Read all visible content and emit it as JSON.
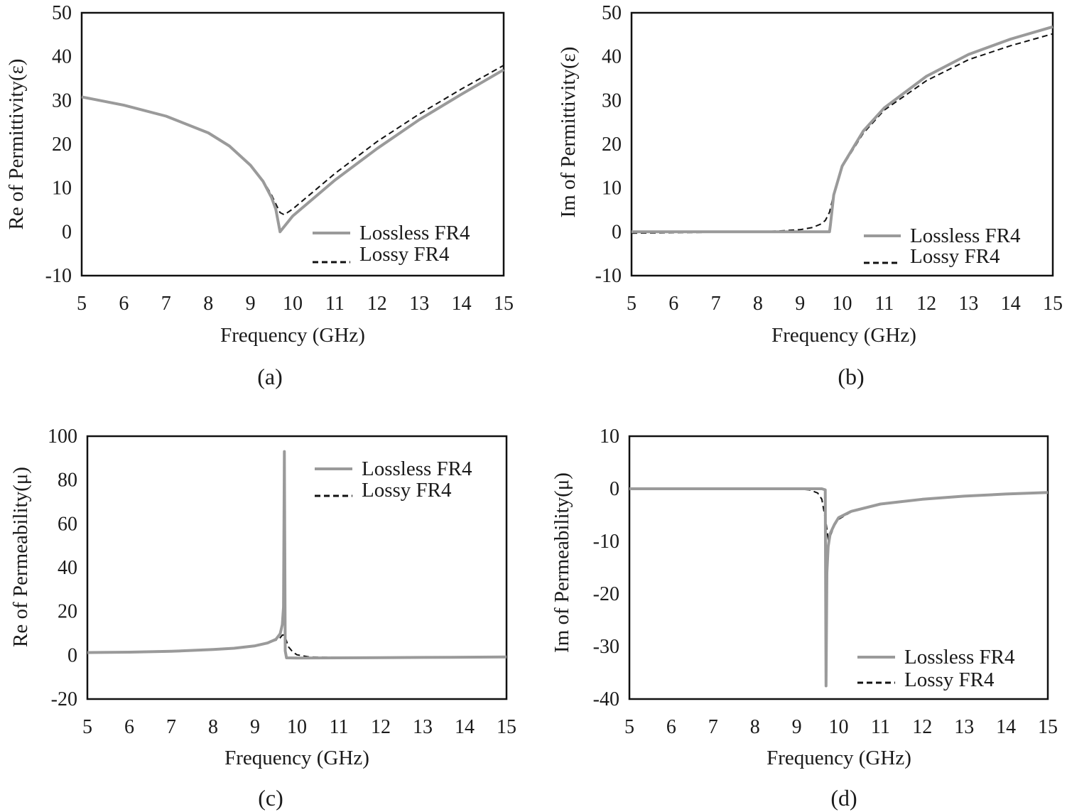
{
  "chart_data": [
    {
      "id": "a",
      "type": "line",
      "caption": "(a)",
      "xlabel": "Frequency (GHz)",
      "ylabel": "Re of Permittivity(ε)",
      "xlim": [
        5,
        15
      ],
      "ylim": [
        -10,
        50
      ],
      "xticks": [
        5,
        6,
        7,
        8,
        9,
        10,
        11,
        12,
        13,
        14,
        15
      ],
      "yticks": [
        -10,
        0,
        10,
        20,
        30,
        40,
        50
      ],
      "legend_position": "bottom-right",
      "series": [
        {
          "name": "Lossless FR4",
          "style": "solid-gray",
          "x": [
            5,
            6,
            7,
            8,
            8.5,
            9,
            9.3,
            9.5,
            9.6,
            9.7,
            10,
            11,
            12,
            13,
            14,
            15
          ],
          "y": [
            30.8,
            28.9,
            26.4,
            22.6,
            19.6,
            15.2,
            11.5,
            7.8,
            5.2,
            0,
            3.6,
            11.8,
            19.0,
            25.6,
            31.4,
            37.0
          ]
        },
        {
          "name": "Lossy FR4",
          "style": "dashed-black",
          "x": [
            5,
            6,
            7,
            8,
            8.5,
            9,
            9.3,
            9.5,
            9.6,
            9.7,
            9.8,
            10,
            11,
            12,
            13,
            14,
            15
          ],
          "y": [
            30.8,
            28.9,
            26.4,
            22.6,
            19.6,
            15.2,
            11.7,
            8.4,
            6.4,
            4.4,
            3.9,
            5.2,
            13.3,
            20.6,
            26.9,
            32.6,
            38.0
          ]
        }
      ]
    },
    {
      "id": "b",
      "type": "line",
      "caption": "(b)",
      "xlabel": "Frequency (GHz)",
      "ylabel": "Im of Permittivity(ε)",
      "xlim": [
        5,
        15
      ],
      "ylim": [
        -10,
        50
      ],
      "xticks": [
        5,
        6,
        7,
        8,
        9,
        10,
        11,
        12,
        13,
        14,
        15
      ],
      "yticks": [
        -10,
        0,
        10,
        20,
        30,
        40,
        50
      ],
      "legend_position": "bottom-right",
      "series": [
        {
          "name": "Lossless FR4",
          "style": "solid-gray",
          "x": [
            5,
            9.7,
            9.72,
            9.8,
            10,
            10.5,
            11,
            12,
            13,
            14,
            15
          ],
          "y": [
            0,
            0,
            1.5,
            8.4,
            15.0,
            23.0,
            28.3,
            35.5,
            40.5,
            44.0,
            46.8
          ],
          "step_before": true
        },
        {
          "name": "Lossy FR4",
          "style": "dashed-black",
          "x": [
            5,
            7,
            8,
            8.5,
            9,
            9.3,
            9.5,
            9.6,
            9.7,
            9.8,
            10,
            10.5,
            11,
            12,
            13,
            14,
            15
          ],
          "y": [
            -0.3,
            -0.1,
            0,
            0.2,
            0.5,
            1.0,
            1.8,
            2.6,
            4.5,
            8.5,
            14.8,
            22.5,
            27.8,
            34.5,
            39.3,
            42.5,
            45.2
          ]
        }
      ]
    },
    {
      "id": "c",
      "type": "line",
      "caption": "(c)",
      "xlabel": "Frequency (GHz)",
      "ylabel": "Re of Permeability(μ)",
      "xlim": [
        5,
        15
      ],
      "ylim": [
        -20,
        100
      ],
      "xticks": [
        5,
        6,
        7,
        8,
        9,
        10,
        11,
        12,
        13,
        14,
        15
      ],
      "yticks": [
        -20,
        0,
        20,
        40,
        60,
        80,
        100
      ],
      "legend_position": "top-right",
      "series": [
        {
          "name": "Lossless FR4",
          "style": "solid-gray",
          "x": [
            5,
            6,
            7,
            8,
            8.5,
            9,
            9.3,
            9.5,
            9.6,
            9.65,
            9.68,
            9.7,
            9.72,
            9.75,
            10,
            11,
            12,
            13,
            14,
            15
          ],
          "y": [
            1.2,
            1.4,
            1.8,
            2.6,
            3.2,
            4.3,
            5.6,
            7.3,
            9.8,
            14.0,
            22.0,
            93.0,
            2.0,
            -1.2,
            -1.3,
            -1.2,
            -1.1,
            -1.0,
            -0.9,
            -0.8
          ]
        },
        {
          "name": "Lossy FR4",
          "style": "dashed-black",
          "x": [
            5,
            6,
            7,
            8,
            8.5,
            9,
            9.3,
            9.5,
            9.6,
            9.65,
            9.7,
            9.75,
            9.8,
            9.9,
            10,
            10.3,
            11,
            12,
            13,
            14,
            15
          ],
          "y": [
            1.2,
            1.4,
            1.8,
            2.6,
            3.2,
            4.3,
            5.5,
            6.9,
            8.0,
            9.2,
            9.3,
            6.5,
            3.8,
            1.5,
            0.2,
            -0.8,
            -1.0,
            -1.0,
            -1.0,
            -0.9,
            -0.8
          ]
        }
      ]
    },
    {
      "id": "d",
      "type": "line",
      "caption": "(d)",
      "xlabel": "Frequency (GHz)",
      "ylabel": "Im of Permeability(μ)",
      "xlim": [
        5,
        15
      ],
      "ylim": [
        -40,
        10
      ],
      "xticks": [
        5,
        6,
        7,
        8,
        9,
        10,
        11,
        12,
        13,
        14,
        15
      ],
      "yticks": [
        -40,
        -30,
        -20,
        -10,
        0,
        10
      ],
      "legend_position": "bottom-right",
      "series": [
        {
          "name": "Lossless FR4",
          "style": "solid-gray",
          "x": [
            5,
            9.6,
            9.68,
            9.7,
            9.72,
            9.75,
            9.8,
            9.9,
            10,
            10.3,
            11,
            12,
            13,
            14,
            15
          ],
          "y": [
            0,
            0,
            -0.2,
            -37.5,
            -16.0,
            -11.0,
            -8.5,
            -6.8,
            -5.5,
            -4.3,
            -2.9,
            -2.0,
            -1.4,
            -1.0,
            -0.7
          ]
        },
        {
          "name": "Lossy FR4",
          "style": "dashed-black",
          "x": [
            5,
            9,
            9.3,
            9.5,
            9.6,
            9.7,
            9.75,
            9.8,
            9.9,
            10,
            10.3,
            11,
            12,
            13,
            14,
            15
          ],
          "y": [
            0,
            0,
            -0.2,
            -0.8,
            -2.0,
            -6.5,
            -9.5,
            -9.0,
            -7.0,
            -5.8,
            -4.4,
            -3.0,
            -2.0,
            -1.4,
            -1.0,
            -0.7
          ]
        }
      ]
    }
  ]
}
